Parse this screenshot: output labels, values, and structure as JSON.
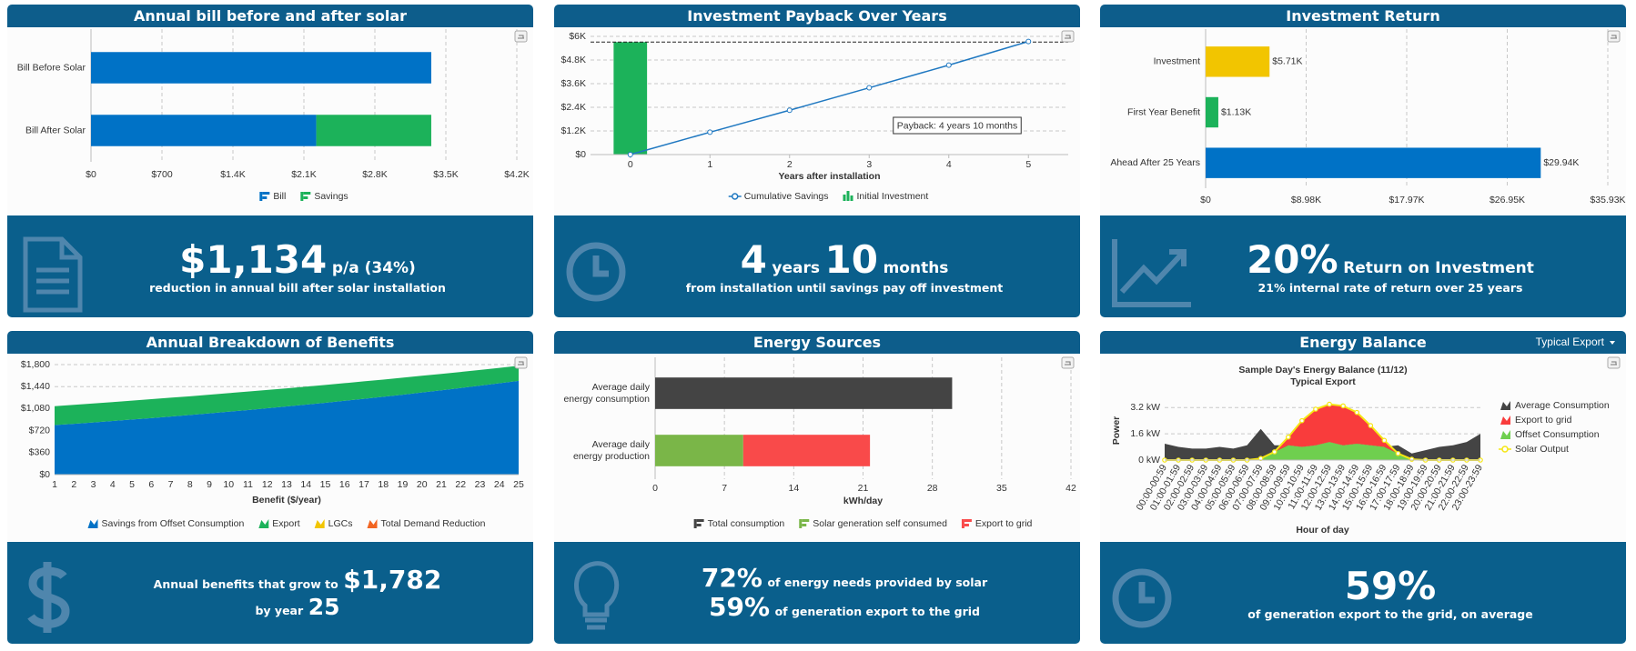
{
  "chart_data": [
    {
      "type": "bar",
      "orientation": "horizontal",
      "stacked": true,
      "title": "Annual bill before and after solar",
      "categories": [
        "Bill Before Solar",
        "Bill After Solar"
      ],
      "series": [
        {
          "name": "Bill",
          "color": "#0072c6",
          "values": [
            3356,
            2222
          ]
        },
        {
          "name": "Savings",
          "color": "#1cb25a",
          "values": [
            null,
            1134
          ]
        }
      ],
      "xlim": [
        0,
        4200
      ],
      "xticks": [
        {
          "value": 0,
          "label": "$0"
        },
        {
          "value": 700,
          "label": "$700"
        },
        {
          "value": 1400,
          "label": "$1.4K"
        },
        {
          "value": 2100,
          "label": "$2.1K"
        },
        {
          "value": 2800,
          "label": "$2.8K"
        },
        {
          "value": 3500,
          "label": "$3.5K"
        },
        {
          "value": 4200,
          "label": "$4.2K"
        }
      ],
      "grid": true,
      "legend": "bottom"
    },
    {
      "type": "line",
      "title": "Investment Payback Over Years",
      "xlabel": "Years after installation",
      "x": [
        0,
        1,
        2,
        3,
        4,
        5
      ],
      "series": [
        {
          "name": "Cumulative Savings",
          "type": "line",
          "color": "#1f78c1",
          "values": [
            0,
            1134,
            2250,
            3390,
            4540,
            5740
          ]
        },
        {
          "name": "Initial Investment",
          "type": "bar",
          "color": "#1cb25a",
          "values": [
            5710,
            null,
            null,
            null,
            null,
            null
          ]
        }
      ],
      "xlim": [
        -0.5,
        5.5
      ],
      "xticks": [
        0,
        1,
        2,
        3,
        4,
        5
      ],
      "ylim": [
        0,
        6000
      ],
      "yticks": [
        {
          "value": 0,
          "label": "$0"
        },
        {
          "value": 1200,
          "label": "$1.2K"
        },
        {
          "value": 2400,
          "label": "$2.4K"
        },
        {
          "value": 3600,
          "label": "$3.6K"
        },
        {
          "value": 4800,
          "label": "$4.8K"
        },
        {
          "value": 6000,
          "label": "$6K"
        }
      ],
      "annotation": "Payback: 4 years 10 months",
      "grid": true,
      "legend": "bottom"
    },
    {
      "type": "bar",
      "orientation": "horizontal",
      "title": "Investment Return",
      "categories": [
        "Investment",
        "First Year Benefit",
        "Ahead After 25 Years"
      ],
      "values": [
        5710,
        1134,
        29940
      ],
      "value_labels": [
        "$5.71K",
        "$1.13K",
        "$29.94K"
      ],
      "colors": [
        "#f2c500",
        "#1cb25a",
        "#0072c6"
      ],
      "xlim": [
        0,
        35930
      ],
      "xticks": [
        {
          "value": 0,
          "label": "$0"
        },
        {
          "value": 8983,
          "label": "$8.98K"
        },
        {
          "value": 17965,
          "label": "$17.97K"
        },
        {
          "value": 26948,
          "label": "$26.95K"
        },
        {
          "value": 35930,
          "label": "$35.93K"
        }
      ],
      "grid": true
    },
    {
      "type": "area",
      "stacked": true,
      "title": "Annual Breakdown of Benefits",
      "xlabel": "Benefit ($/year)",
      "x": [
        1,
        2,
        3,
        4,
        5,
        6,
        7,
        8,
        9,
        10,
        11,
        12,
        13,
        14,
        15,
        16,
        17,
        18,
        19,
        20,
        21,
        22,
        23,
        24,
        25
      ],
      "series": [
        {
          "name": "Savings from Offset Consumption",
          "color": "#0072c6",
          "values": [
            810,
            832,
            854,
            877,
            901,
            925,
            950,
            976,
            1002,
            1030,
            1057,
            1086,
            1115,
            1145,
            1176,
            1208,
            1241,
            1274,
            1308,
            1344,
            1380,
            1417,
            1456,
            1495,
            1535
          ]
        },
        {
          "name": "Export",
          "color": "#1cb25a",
          "values": [
            310,
            310,
            310,
            310,
            309,
            309,
            308,
            306,
            305,
            303,
            302,
            299,
            297,
            295,
            292,
            288,
            285,
            281,
            278,
            273,
            268,
            263,
            257,
            251,
            247
          ]
        },
        {
          "name": "LGCs",
          "color": "#f2c500",
          "values": [
            0,
            0,
            0,
            0,
            0,
            0,
            0,
            0,
            0,
            0,
            0,
            0,
            0,
            0,
            0,
            0,
            0,
            0,
            0,
            0,
            0,
            0,
            0,
            0,
            0
          ]
        },
        {
          "name": "Total Demand Reduction",
          "color": "#f26522",
          "values": [
            0,
            0,
            0,
            0,
            0,
            0,
            0,
            0,
            0,
            0,
            0,
            0,
            0,
            0,
            0,
            0,
            0,
            0,
            0,
            0,
            0,
            0,
            0,
            0,
            0
          ]
        }
      ],
      "xlim": [
        1,
        25
      ],
      "xticks": [
        1,
        2,
        3,
        4,
        5,
        6,
        7,
        8,
        9,
        10,
        11,
        12,
        13,
        14,
        15,
        16,
        17,
        18,
        19,
        20,
        21,
        22,
        23,
        24,
        25
      ],
      "ylim": [
        0,
        1800
      ],
      "yticks": [
        {
          "value": 0,
          "label": "$0"
        },
        {
          "value": 360,
          "label": "$360"
        },
        {
          "value": 720,
          "label": "$720"
        },
        {
          "value": 1080,
          "label": "$1,080"
        },
        {
          "value": 1440,
          "label": "$1,440"
        },
        {
          "value": 1800,
          "label": "$1,800"
        }
      ],
      "grid": true,
      "legend": "bottom"
    },
    {
      "type": "bar",
      "orientation": "horizontal",
      "stacked": true,
      "title": "Energy Sources",
      "xlabel": "kWh/day",
      "categories": [
        "Average daily\nenergy consumption",
        "Average daily\nenergy production"
      ],
      "series": [
        {
          "name": "Total consumption",
          "color": "#444444",
          "values": [
            30.0,
            null
          ]
        },
        {
          "name": "Solar generation self consumed",
          "color": "#7ab648",
          "values": [
            null,
            8.9
          ]
        },
        {
          "name": "Export to grid",
          "color": "#f94a4a",
          "values": [
            null,
            12.8
          ]
        }
      ],
      "xlim": [
        0,
        42
      ],
      "xticks": [
        0,
        7,
        14,
        21,
        28,
        35,
        42
      ],
      "grid": true,
      "legend": "bottom"
    },
    {
      "type": "area",
      "title": "Energy Balance",
      "selector": "Typical Export",
      "chart_title": "Sample Day's Energy Balance (11/12)",
      "subtitle": "Typical Export",
      "xlabel": "Hour of day",
      "ylabel": "Power",
      "categories": [
        "00:00-00:59",
        "01:00-01:59",
        "02:00-02:59",
        "03:00-03:59",
        "04:00-04:59",
        "05:00-05:59",
        "06:00-06:59",
        "07:00-07:59",
        "08:00-08:59",
        "09:00-09:59",
        "10:00-10:59",
        "11:00-11:59",
        "12:00-12:59",
        "13:00-13:59",
        "14:00-14:59",
        "15:00-15:59",
        "16:00-16:59",
        "17:00-17:59",
        "18:00-18:59",
        "19:00-19:59",
        "20:00-20:59",
        "21:00-21:59",
        "22:00-22:59",
        "23:00-23:59"
      ],
      "series": [
        {
          "name": "Average Consumption",
          "color": "#444444",
          "values": [
            1.0,
            0.8,
            0.7,
            0.7,
            0.8,
            0.7,
            0.9,
            1.9,
            0.9,
            0.9,
            0.8,
            0.9,
            1.1,
            0.9,
            1.0,
            0.9,
            0.8,
            0.9,
            0.4,
            0.6,
            0.8,
            0.9,
            1.1,
            1.6
          ]
        },
        {
          "name": "Export to grid",
          "color": "#f93c3c",
          "stack_on": 2,
          "values": [
            0,
            0,
            0,
            0,
            0,
            0,
            0,
            0,
            0,
            0.5,
            1.6,
            2.2,
            2.3,
            2.4,
            1.9,
            1.2,
            0.4,
            0,
            0,
            0,
            0,
            0,
            0,
            0
          ]
        },
        {
          "name": "Offset Consumption",
          "color": "#6fcf4f",
          "values": [
            0,
            0,
            0,
            0,
            0,
            0,
            0,
            0.1,
            0.5,
            0.9,
            0.8,
            0.9,
            1.1,
            0.9,
            1.0,
            0.9,
            0.8,
            0.4,
            0.05,
            0,
            0,
            0,
            0,
            0
          ]
        },
        {
          "name": "Solar Output",
          "type": "line",
          "color": "#f5e612",
          "values": [
            0,
            0,
            0,
            0,
            0,
            0,
            0,
            0.1,
            0.5,
            1.4,
            2.4,
            3.1,
            3.4,
            3.3,
            2.9,
            2.1,
            1.2,
            0.4,
            0.05,
            0,
            0,
            0,
            0,
            0
          ]
        }
      ],
      "ylim": [
        0,
        3.6
      ],
      "yticks": [
        {
          "value": 0,
          "label": "0 kW"
        },
        {
          "value": 1.6,
          "label": "1.6 kW"
        },
        {
          "value": 3.2,
          "label": "3.2 kW"
        }
      ],
      "grid": true,
      "legend": "right"
    }
  ],
  "stats": [
    {
      "value": "$1,134",
      "suffix": "p/a (34%)",
      "caption": "reduction in annual bill after solar installation"
    },
    {
      "years": "4",
      "years_unit": "years",
      "months": "10",
      "months_unit": "months",
      "caption": "from installation until savings pay off investment"
    },
    {
      "value": "20%",
      "suffix": "Return on Investment",
      "caption": "21% internal rate of return over 25 years"
    },
    {
      "lead": "Annual benefits that grow to",
      "value": "$1,782",
      "lead2": "by year",
      "year": "25"
    },
    {
      "value": "72%",
      "suffix": "of energy needs provided by solar",
      "value2": "59%",
      "suffix2": "of generation export to the grid"
    },
    {
      "value": "59%",
      "caption": "of generation export to the grid, on average"
    }
  ]
}
